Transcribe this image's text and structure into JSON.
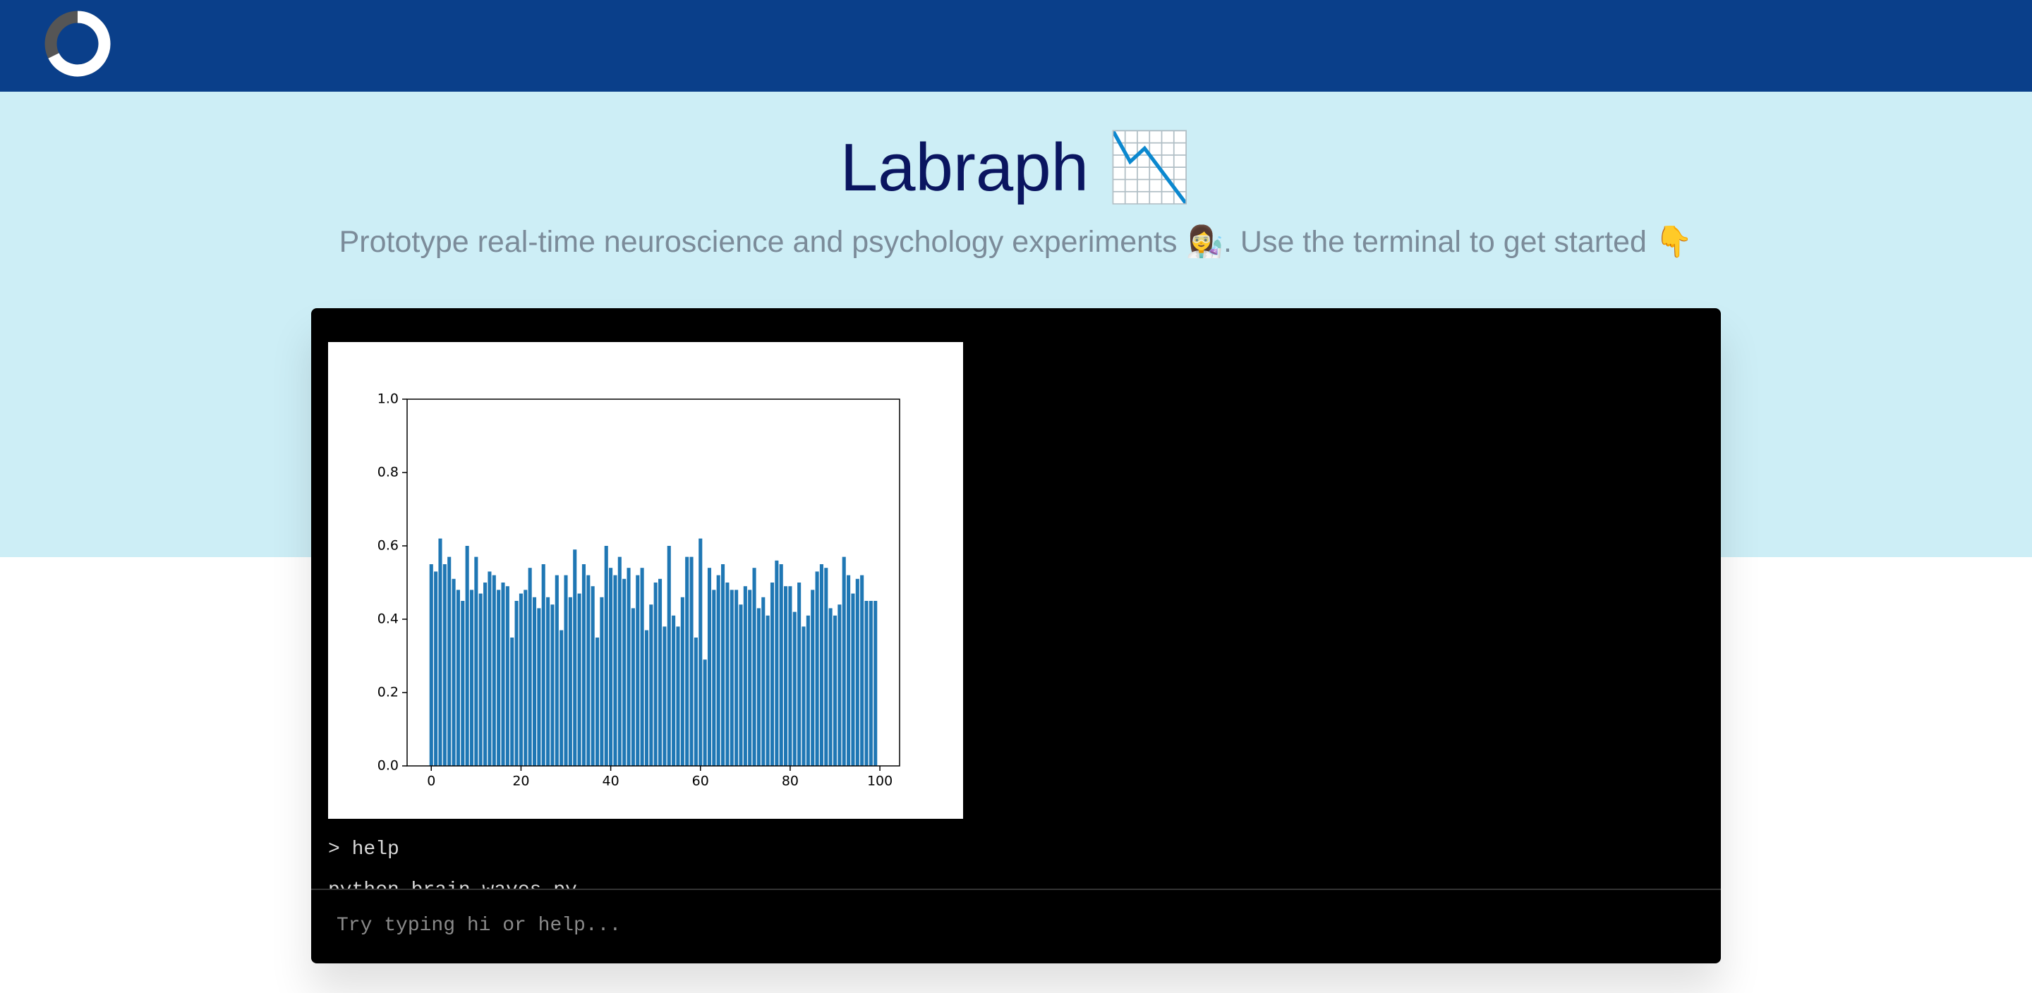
{
  "hero": {
    "title": "Labraph 📉",
    "subtitle": "Prototype real-time neuroscience and psychology experiments 👩‍🔬. Use the terminal to get started 👇"
  },
  "terminal": {
    "history": [
      "> help",
      "python brain_waves.py"
    ],
    "input_placeholder": "Try typing hi or help..."
  },
  "chart_data": {
    "type": "bar",
    "x": [
      0,
      1,
      2,
      3,
      4,
      5,
      6,
      7,
      8,
      9,
      10,
      11,
      12,
      13,
      14,
      15,
      16,
      17,
      18,
      19,
      20,
      21,
      22,
      23,
      24,
      25,
      26,
      27,
      28,
      29,
      30,
      31,
      32,
      33,
      34,
      35,
      36,
      37,
      38,
      39,
      40,
      41,
      42,
      43,
      44,
      45,
      46,
      47,
      48,
      49,
      50,
      51,
      52,
      53,
      54,
      55,
      56,
      57,
      58,
      59,
      60,
      61,
      62,
      63,
      64,
      65,
      66,
      67,
      68,
      69,
      70,
      71,
      72,
      73,
      74,
      75,
      76,
      77,
      78,
      79,
      80,
      81,
      82,
      83,
      84,
      85,
      86,
      87,
      88,
      89,
      90,
      91,
      92,
      93,
      94,
      95,
      96,
      97,
      98,
      99
    ],
    "values": [
      0.55,
      0.53,
      0.62,
      0.55,
      0.57,
      0.51,
      0.48,
      0.45,
      0.6,
      0.48,
      0.57,
      0.47,
      0.5,
      0.53,
      0.52,
      0.48,
      0.5,
      0.49,
      0.35,
      0.45,
      0.47,
      0.48,
      0.54,
      0.46,
      0.43,
      0.55,
      0.46,
      0.44,
      0.52,
      0.37,
      0.52,
      0.46,
      0.59,
      0.47,
      0.55,
      0.52,
      0.49,
      0.35,
      0.46,
      0.6,
      0.54,
      0.52,
      0.57,
      0.51,
      0.54,
      0.43,
      0.52,
      0.54,
      0.37,
      0.44,
      0.5,
      0.51,
      0.38,
      0.6,
      0.41,
      0.38,
      0.46,
      0.57,
      0.57,
      0.35,
      0.62,
      0.29,
      0.54,
      0.48,
      0.52,
      0.55,
      0.5,
      0.48,
      0.48,
      0.44,
      0.49,
      0.48,
      0.54,
      0.43,
      0.46,
      0.41,
      0.5,
      0.56,
      0.55,
      0.49,
      0.49,
      0.42,
      0.5,
      0.38,
      0.41,
      0.48,
      0.53,
      0.55,
      0.54,
      0.43,
      0.41,
      0.44,
      0.57,
      0.52,
      0.47,
      0.51,
      0.52,
      0.45,
      0.45,
      0.45
    ],
    "color": "#1f77b4",
    "xlim": [
      -5.39,
      104.39
    ],
    "xticks": [
      0,
      20,
      40,
      60,
      80,
      100
    ],
    "ylim": [
      0,
      1
    ],
    "yticks": [
      {
        "value": 0,
        "label": "0.0"
      },
      {
        "value": 0.2,
        "label": "0.2"
      },
      {
        "value": 0.4,
        "label": "0.4"
      },
      {
        "value": 0.6,
        "label": "0.6"
      },
      {
        "value": 0.8,
        "label": "0.8"
      },
      {
        "value": 1,
        "label": "1.0"
      }
    ]
  }
}
